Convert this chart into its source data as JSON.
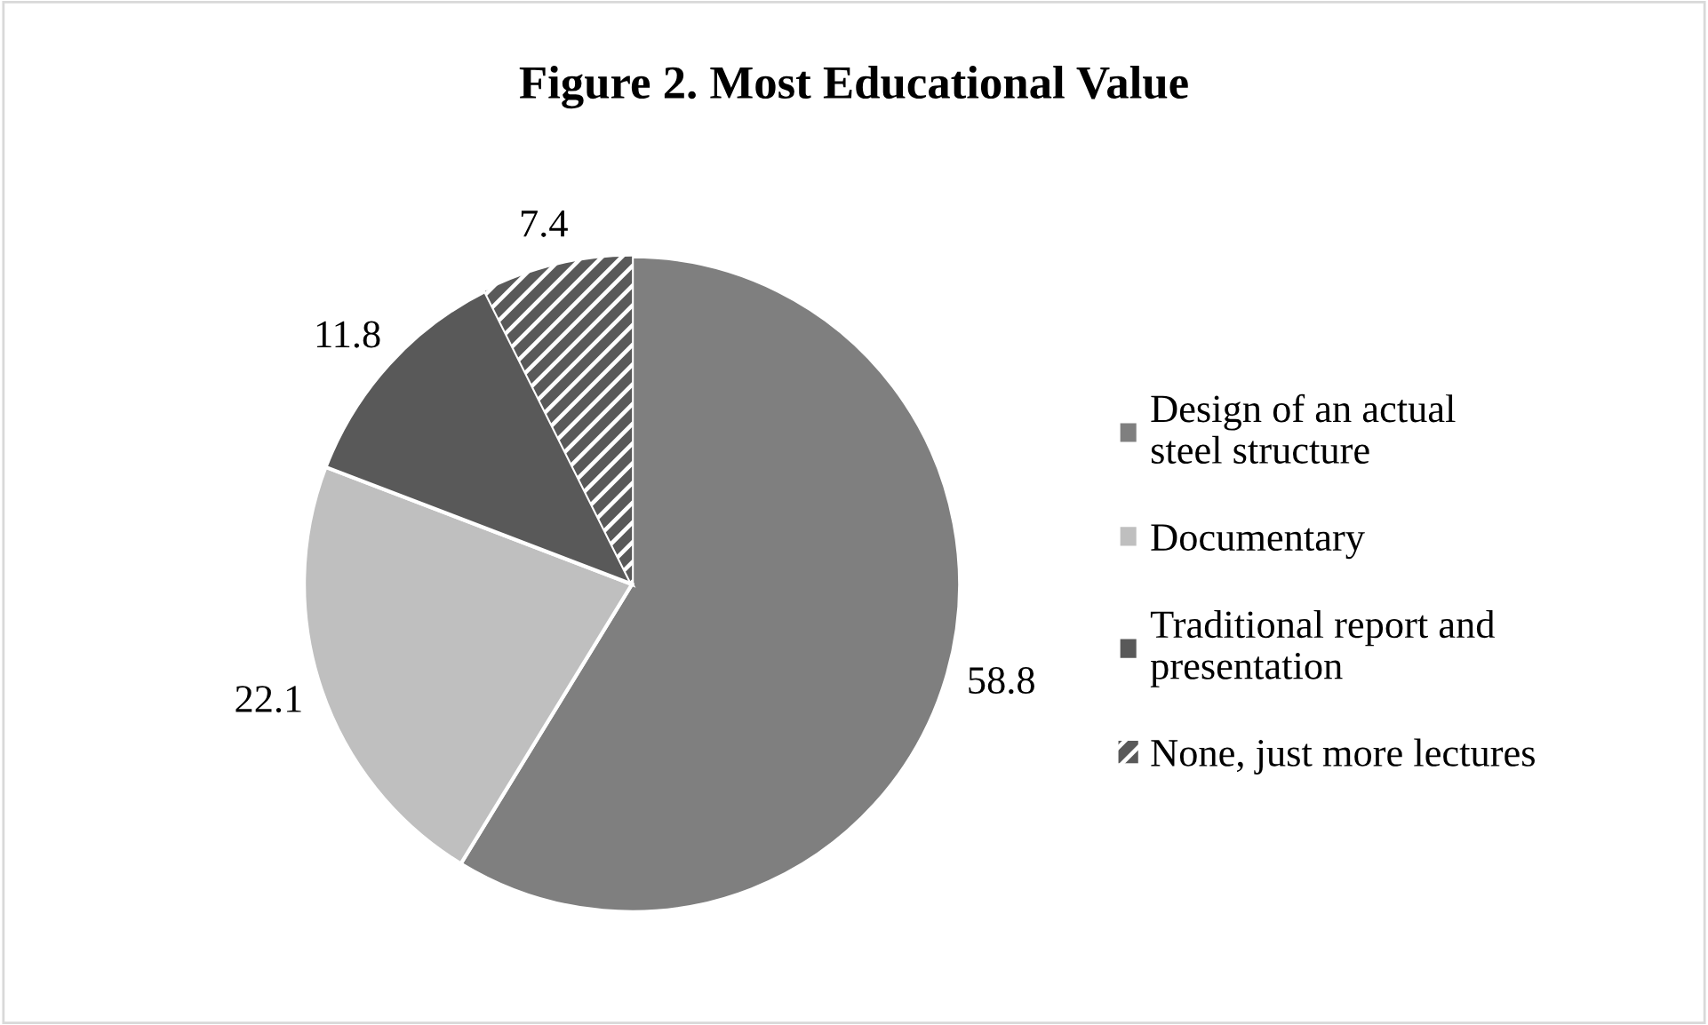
{
  "chart_data": {
    "type": "pie",
    "title": "Figure 2. Most Educational Value",
    "categories": [
      "Design of an actual steel structure",
      "Documentary",
      "Traditional report and presentation",
      "None, just more lectures"
    ],
    "values": [
      58.8,
      22.1,
      11.8,
      7.4
    ],
    "colors": [
      "#7f7f7f",
      "#bfbfbf",
      "#595959",
      "#595959"
    ],
    "data_labels": true,
    "legend": "right"
  }
}
